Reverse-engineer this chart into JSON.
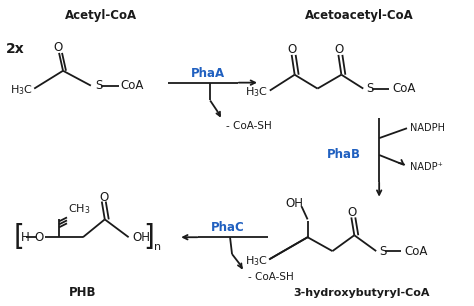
{
  "bg_color": "#ffffff",
  "text_color": "#1a1a1a",
  "blue_color": "#2060c0",
  "fig_width": 4.74,
  "fig_height": 3.06,
  "dpi": 100,
  "labels": {
    "acetyl_coa": "Acetyl-CoA",
    "acetoacetyl_coa": "Acetoacetyl-CoA",
    "phb": "PHB",
    "hydroxy": "3-hydroxybutyryl-CoA",
    "two_x": "2x",
    "phaa": "PhaA",
    "phab": "PhaB",
    "phac": "PhaC",
    "coa_sh": "- CoA-SH",
    "nadph": "NADPH",
    "nadp": "NADP⁺",
    "O": "O",
    "S": "S",
    "CoA": "CoA",
    "OH": "OH",
    "H": "H"
  }
}
